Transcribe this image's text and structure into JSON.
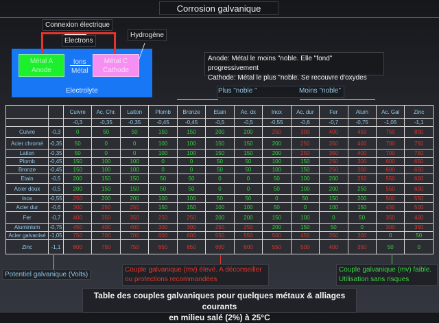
{
  "title": "Corrosion galvanique",
  "diagram": {
    "connection": "Connexion électrique",
    "electrons": "Electrons",
    "hydrogen": "Hydrogène",
    "metal_a": [
      "Métal A",
      "Anode"
    ],
    "metal_c": [
      "Métal C",
      "Cathode"
    ],
    "ions": [
      "Ions",
      "Métal"
    ],
    "electrolyte": "Electrolyte",
    "note": [
      "Anode: Métal le moins \"noble. Elle \"fond\" progressivement",
      "Cathode: Métal le plus \"noble. Se recouvre d'oxydes"
    ],
    "more_noble": "Plus \"noble \"",
    "less_noble": "Moins \"noble\""
  },
  "table": {
    "columns": [
      "Cuivre",
      "Ac. Chr.",
      "Laiton",
      "Plomb",
      "Bronze",
      "Etain",
      "Ac. dx",
      "Inox",
      "Ac. dur",
      "Fer",
      "Alum",
      "Ac. Gal",
      "Zinc"
    ],
    "column_potentials": [
      "-0,3",
      "-0,35",
      "-0,35",
      "-0,45",
      "-0,45",
      "-0,5",
      "-0,5",
      "-0,55",
      "-0,6",
      "-0,7",
      "-0,75",
      "-1,05",
      "-1,1"
    ],
    "rows": [
      {
        "name": "Cuivre",
        "potential": "-0,3",
        "values": [
          0,
          50,
          50,
          150,
          150,
          200,
          200,
          250,
          300,
          400,
          450,
          750,
          800
        ]
      },
      {
        "name": "Acier chromé",
        "potential": "-0,35",
        "values": [
          50,
          0,
          0,
          100,
          100,
          150,
          150,
          200,
          250,
          350,
          400,
          700,
          750
        ]
      },
      {
        "name": "Laiton",
        "potential": "-0,35",
        "values": [
          50,
          0,
          0,
          100,
          100,
          150,
          150,
          200,
          250,
          350,
          400,
          700,
          750
        ]
      },
      {
        "name": "Plomb",
        "potential": "-0,45",
        "values": [
          150,
          100,
          100,
          0,
          0,
          50,
          50,
          100,
          150,
          250,
          300,
          600,
          650
        ]
      },
      {
        "name": "Bronze",
        "potential": "-0,45",
        "values": [
          150,
          100,
          100,
          0,
          0,
          50,
          50,
          100,
          150,
          250,
          300,
          600,
          650
        ]
      },
      {
        "name": "Etain",
        "potential": "-0,5",
        "values": [
          200,
          150,
          150,
          50,
          50,
          0,
          0,
          50,
          100,
          200,
          250,
          550,
          600
        ]
      },
      {
        "name": "Acier doux",
        "potential": "-0,5",
        "values": [
          200,
          150,
          150,
          50,
          50,
          0,
          0,
          50,
          100,
          200,
          250,
          550,
          600
        ]
      },
      {
        "name": "Inox",
        "potential": "-0,55",
        "values": [
          250,
          200,
          200,
          100,
          100,
          50,
          50,
          0,
          50,
          150,
          200,
          500,
          550
        ]
      },
      {
        "name": "Acier dur",
        "potential": "-0,6",
        "values": [
          300,
          250,
          250,
          150,
          150,
          100,
          100,
          50,
          0,
          100,
          150,
          450,
          500
        ]
      },
      {
        "name": "Fer",
        "potential": "-0,7",
        "values": [
          400,
          350,
          350,
          250,
          250,
          200,
          200,
          150,
          100,
          0,
          50,
          350,
          400
        ]
      },
      {
        "name": "Aluminium",
        "potential": "-0,75",
        "values": [
          450,
          400,
          400,
          300,
          300,
          250,
          250,
          200,
          150,
          50,
          0,
          300,
          350
        ]
      },
      {
        "name": "Acier galvanisé",
        "potential": "-1,05",
        "values": [
          750,
          700,
          700,
          600,
          600,
          550,
          550,
          500,
          450,
          350,
          300,
          0,
          50
        ]
      },
      {
        "name": "Zinc",
        "potential": "-1,1",
        "values": [
          800,
          750,
          750,
          650,
          650,
          600,
          600,
          550,
          500,
          400,
          350,
          50,
          0
        ]
      }
    ],
    "red_threshold_mv": 250,
    "green_exceptions": [
      [
        6,
        10
      ]
    ],
    "colors": {
      "low": "#33d43a",
      "high": "#d8352a",
      "header": "#8ec9e8"
    }
  },
  "legend": {
    "potential": "Potentiel galvanique (Volts)",
    "high": [
      "Couple galvanique (mv) élevé. A déconseiller",
      "ou protections recommandées"
    ],
    "low": [
      "Couple galvanique (mv) faible.",
      "Utilisation sans risques"
    ]
  },
  "caption": [
    "Table des couples galvaniques pour quelques métaux & alliages courants",
    "en milieu salé (2%) à 25°C"
  ]
}
